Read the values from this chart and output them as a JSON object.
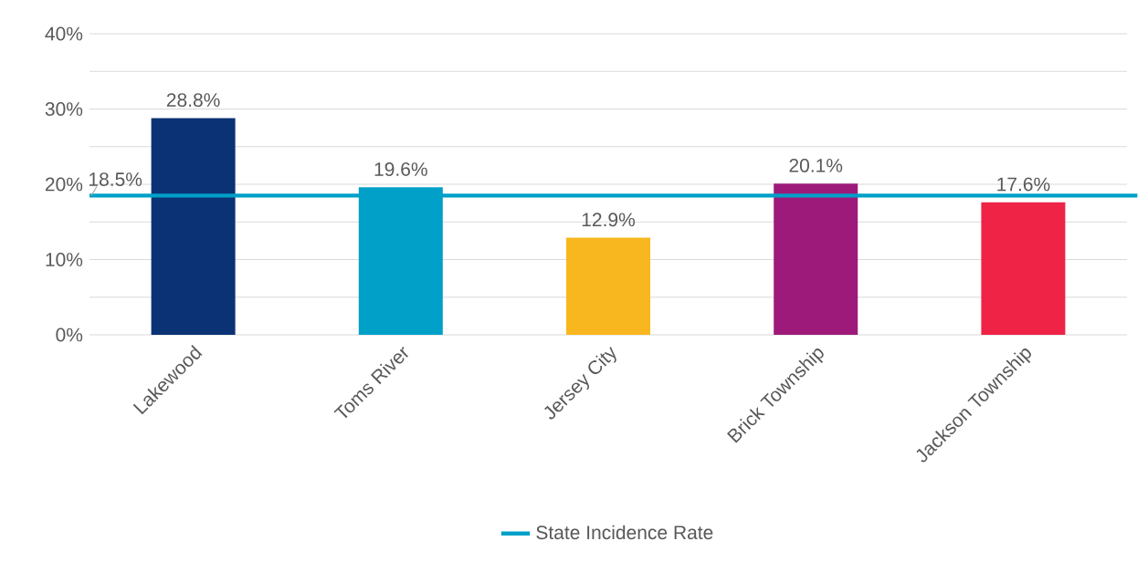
{
  "chart_data": {
    "type": "bar",
    "categories": [
      "Lakewood",
      "Toms River",
      "Jersey City",
      "Brick Township",
      "Jackson Township"
    ],
    "values": [
      28.8,
      19.6,
      12.9,
      20.1,
      17.6
    ],
    "colors": [
      "#0b3275",
      "#00a0c8",
      "#f8b71e",
      "#9e1a7a",
      "#ee2346"
    ],
    "value_labels": [
      "28.8%",
      "19.6%",
      "12.9%",
      "20.1%",
      "17.6%"
    ],
    "ylim": [
      0,
      40
    ],
    "yticks": [
      {
        "value": 0,
        "label": "0%"
      },
      {
        "value": 5,
        "label": null
      },
      {
        "value": 10,
        "label": "10%"
      },
      {
        "value": 15,
        "label": null
      },
      {
        "value": 20,
        "label": "20%"
      },
      {
        "value": 25,
        "label": null
      },
      {
        "value": 30,
        "label": "30%"
      },
      {
        "value": 35,
        "label": null
      },
      {
        "value": 40,
        "label": "40%"
      }
    ],
    "ref_lines": [
      {
        "axis": "y",
        "value": 18.5,
        "label": "State Incidence Rate",
        "color": "#00a0c8"
      }
    ],
    "annotations": [
      {
        "text": "18.5%",
        "y": 18.5
      }
    ],
    "grid": "y",
    "legend": "bottom"
  }
}
